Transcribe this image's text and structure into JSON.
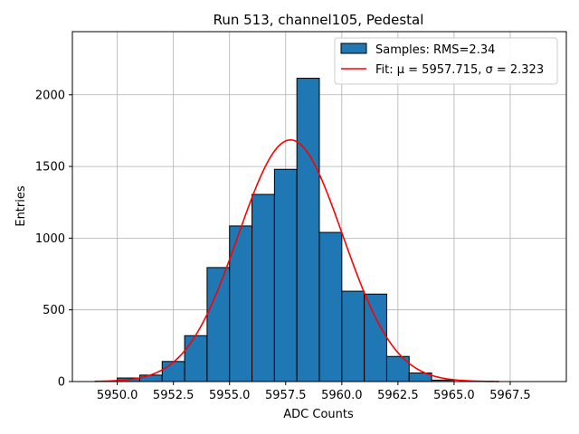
{
  "chart_data": {
    "type": "bar",
    "title": "Run 513, channel105, Pedestal",
    "xlabel": "ADC Counts",
    "ylabel": "Entries",
    "xlim": [
      5948.0,
      5970.0
    ],
    "ylim": [
      0,
      2440
    ],
    "grid": true,
    "legend_position": "top-right",
    "x_ticks": [
      5950.0,
      5952.5,
      5955.0,
      5957.5,
      5960.0,
      5962.5,
      5965.0,
      5967.5
    ],
    "x_tick_labels": [
      "5950.0",
      "5952.5",
      "5955.0",
      "5957.5",
      "5960.0",
      "5962.5",
      "5965.0",
      "5967.5"
    ],
    "y_ticks": [
      0,
      500,
      1000,
      1500,
      2000
    ],
    "y_tick_labels": [
      "0",
      "500",
      "1000",
      "1500",
      "2000"
    ],
    "histogram": {
      "name": "Samples: RMS=2.34",
      "color": "#1f77b4",
      "edge_color": "#000000",
      "bin_edges": [
        5950,
        5951,
        5952,
        5953,
        5954,
        5955,
        5956,
        5957,
        5958,
        5959,
        5960,
        5961,
        5962,
        5963,
        5964,
        5965
      ],
      "counts": [
        25,
        45,
        140,
        320,
        795,
        1085,
        1305,
        1480,
        2115,
        1040,
        630,
        610,
        175,
        60,
        10
      ]
    },
    "fit": {
      "name": "Fit: μ = 5957.715, σ = 2.323",
      "color": "#ff0000",
      "mu": 5957.715,
      "sigma": 2.323,
      "amplitude": 1685,
      "x_range": [
        5949.0,
        5967.0
      ]
    }
  }
}
